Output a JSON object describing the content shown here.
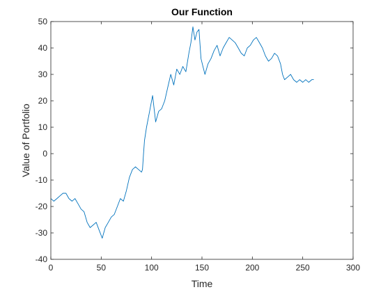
{
  "chart_data": {
    "type": "line",
    "title": "Our Function",
    "xlabel": "Time",
    "ylabel": "Value of Portfolio",
    "xlim": [
      0,
      300
    ],
    "ylim": [
      -40,
      50
    ],
    "xticks": [
      "0",
      "50",
      "100",
      "150",
      "200",
      "250",
      "300"
    ],
    "yticks": [
      "-40",
      "-30",
      "-20",
      "-10",
      "0",
      "10",
      "20",
      "30",
      "40",
      "50"
    ],
    "grid": false,
    "box": true,
    "line_color": "#0072BD",
    "series": [
      {
        "x": [
          0,
          3,
          6,
          9,
          12,
          15,
          18,
          21,
          24,
          27,
          30,
          33,
          36,
          39,
          42,
          45,
          48,
          51,
          54,
          57,
          60,
          63,
          66,
          69,
          72,
          75,
          78,
          81,
          84,
          87,
          90,
          91,
          92,
          93,
          95,
          98,
          101,
          104,
          107,
          110,
          113,
          116,
          119,
          122,
          125,
          128,
          131,
          134,
          137,
          139,
          141,
          143,
          145,
          147,
          149,
          151,
          153,
          156,
          159,
          162,
          165,
          168,
          171,
          174,
          177,
          180,
          183,
          186,
          189,
          192,
          195,
          198,
          201,
          204,
          207,
          210,
          213,
          216,
          219,
          222,
          225,
          228,
          230,
          232,
          235,
          238,
          241,
          244,
          247,
          250,
          253,
          256,
          259,
          261
        ],
        "y": [
          -17,
          -18,
          -17,
          -16,
          -15,
          -15,
          -17,
          -18,
          -17,
          -19,
          -21,
          -22,
          -26,
          -28,
          -27,
          -26,
          -29,
          -32,
          -28,
          -26,
          -24,
          -23,
          -20,
          -17,
          -18,
          -14,
          -9,
          -6,
          -5,
          -6,
          -7,
          -6,
          0,
          5,
          10,
          16,
          22,
          12,
          16,
          17,
          20,
          25,
          30,
          26,
          32,
          30,
          33,
          31,
          38,
          42,
          48,
          43,
          46,
          47,
          36,
          33,
          30,
          34,
          36,
          39,
          41,
          37,
          40,
          42,
          44,
          43,
          42,
          40,
          38,
          37,
          40,
          41,
          43,
          44,
          42,
          40,
          37,
          35,
          36,
          38,
          37,
          34,
          30,
          28,
          29,
          30,
          28,
          27,
          28,
          27,
          28,
          27,
          28,
          28
        ]
      }
    ]
  }
}
